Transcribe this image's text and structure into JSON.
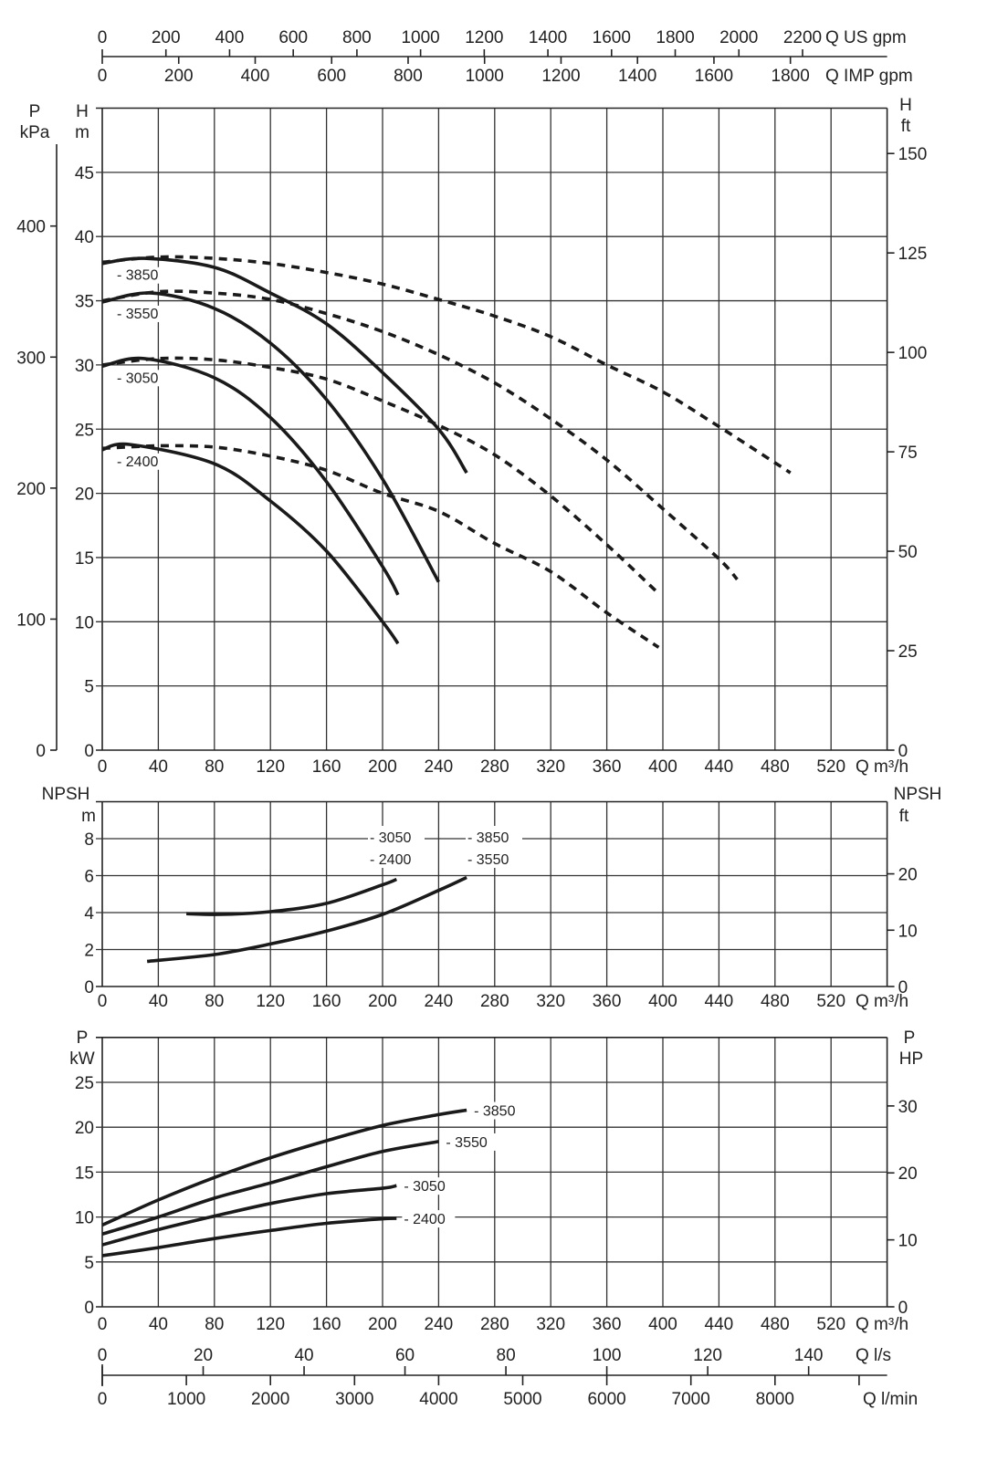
{
  "chart_data": {
    "type": "line",
    "top_axes": {
      "us_gpm": {
        "label": "Q US gpm",
        "ticks": [
          0,
          200,
          400,
          600,
          800,
          1000,
          1200,
          1400,
          1600,
          1800,
          2000,
          2200
        ]
      },
      "imp_gpm": {
        "label": "Q IMP gpm",
        "ticks": [
          0,
          200,
          400,
          600,
          800,
          1000,
          1200,
          1400,
          1600,
          1800
        ]
      }
    },
    "x_axis": {
      "label": "Q m³/h",
      "ticks": [
        0,
        40,
        80,
        120,
        160,
        200,
        240,
        280,
        320,
        360,
        400,
        440,
        480,
        520
      ],
      "range": [
        0,
        560
      ]
    },
    "head": {
      "ylabel": "H",
      "yunit": "m",
      "ylim": [
        0,
        50
      ],
      "yticks": [
        0,
        5,
        10,
        15,
        20,
        25,
        30,
        35,
        40,
        45
      ],
      "left2": {
        "label": "P",
        "unit": "kPa",
        "ticks": [
          0,
          100,
          200,
          300,
          400
        ]
      },
      "right": {
        "label": "H",
        "unit": "ft",
        "ticks": [
          0,
          25,
          50,
          75,
          100,
          125,
          150
        ]
      },
      "series": [
        {
          "name": "3850",
          "label": "- 3850",
          "style": "solid",
          "points": [
            [
              0,
              37.9
            ],
            [
              30,
              38.3
            ],
            [
              80,
              37.6
            ],
            [
              120,
              35.6
            ],
            [
              160,
              33.2
            ],
            [
              200,
              29.4
            ],
            [
              240,
              25.0
            ],
            [
              260,
              21.6
            ]
          ]
        },
        {
          "name": "3550",
          "label": "- 3550",
          "style": "solid",
          "points": [
            [
              0,
              34.9
            ],
            [
              35,
              35.6
            ],
            [
              80,
              34.4
            ],
            [
              120,
              31.7
            ],
            [
              160,
              27.3
            ],
            [
              200,
              21.1
            ],
            [
              240,
              13.1
            ]
          ]
        },
        {
          "name": "3050",
          "label": "- 3050",
          "style": "solid",
          "points": [
            [
              0,
              29.9
            ],
            [
              30,
              30.5
            ],
            [
              80,
              29.0
            ],
            [
              120,
              25.9
            ],
            [
              160,
              20.9
            ],
            [
              200,
              14.3
            ],
            [
              211,
              12.1
            ]
          ]
        },
        {
          "name": "2400",
          "label": "- 2400",
          "style": "solid",
          "points": [
            [
              0,
              23.4
            ],
            [
              20,
              23.8
            ],
            [
              80,
              22.3
            ],
            [
              120,
              19.4
            ],
            [
              160,
              15.5
            ],
            [
              200,
              10.0
            ],
            [
              211,
              8.3
            ]
          ]
        },
        {
          "name": "3850 dashed",
          "style": "dashed",
          "points": [
            [
              0,
              38.0
            ],
            [
              40,
              38.4
            ],
            [
              80,
              38.3
            ],
            [
              120,
              37.9
            ],
            [
              160,
              37.2
            ],
            [
              200,
              36.3
            ],
            [
              240,
              35.1
            ],
            [
              280,
              33.8
            ],
            [
              320,
              32.2
            ],
            [
              360,
              30.0
            ],
            [
              400,
              27.9
            ],
            [
              440,
              25.2
            ],
            [
              491,
              21.6
            ]
          ]
        },
        {
          "name": "3550 dashed",
          "style": "dashed",
          "points": [
            [
              0,
              35.0
            ],
            [
              40,
              35.7
            ],
            [
              80,
              35.6
            ],
            [
              120,
              35.1
            ],
            [
              160,
              34.0
            ],
            [
              200,
              32.6
            ],
            [
              240,
              30.8
            ],
            [
              280,
              28.6
            ],
            [
              320,
              25.8
            ],
            [
              360,
              22.6
            ],
            [
              400,
              18.8
            ],
            [
              440,
              14.9
            ],
            [
              453,
              13.3
            ]
          ]
        },
        {
          "name": "3050 dashed",
          "style": "dashed",
          "points": [
            [
              0,
              30.0
            ],
            [
              40,
              30.5
            ],
            [
              80,
              30.4
            ],
            [
              120,
              29.8
            ],
            [
              160,
              28.9
            ],
            [
              200,
              27.2
            ],
            [
              240,
              25.3
            ],
            [
              280,
              23.0
            ],
            [
              320,
              19.8
            ],
            [
              360,
              16.0
            ],
            [
              395,
              12.4
            ]
          ]
        },
        {
          "name": "2400 dashed",
          "style": "dashed",
          "points": [
            [
              0,
              23.5
            ],
            [
              40,
              23.7
            ],
            [
              80,
              23.6
            ],
            [
              120,
              22.9
            ],
            [
              160,
              21.8
            ],
            [
              200,
              20.0
            ],
            [
              240,
              18.6
            ],
            [
              280,
              16.1
            ],
            [
              320,
              13.9
            ],
            [
              360,
              10.7
            ],
            [
              397,
              8.0
            ]
          ]
        }
      ]
    },
    "npsh": {
      "ylabel": "NPSH",
      "yunit": "m",
      "ylim": [
        0,
        10
      ],
      "yticks": [
        0,
        2,
        4,
        6,
        8
      ],
      "right": {
        "label": "NPSH",
        "unit": "ft",
        "ticks": [
          0,
          10,
          20
        ]
      },
      "series": [
        {
          "name": "3050 / 2400",
          "labels": [
            "- 3050",
            "- 2400"
          ],
          "style": "solid",
          "points": [
            [
              60,
              3.94
            ],
            [
              85,
              3.9
            ],
            [
              120,
              4.05
            ],
            [
              160,
              4.5
            ],
            [
              200,
              5.5
            ],
            [
              210,
              5.8
            ]
          ]
        },
        {
          "name": "3850 / 3550",
          "labels": [
            "- 3850",
            "- 3550"
          ],
          "style": "solid",
          "points": [
            [
              32,
              1.36
            ],
            [
              80,
              1.73
            ],
            [
              120,
              2.3
            ],
            [
              160,
              3.0
            ],
            [
              200,
              3.9
            ],
            [
              240,
              5.2
            ],
            [
              260,
              5.9
            ]
          ]
        }
      ]
    },
    "power": {
      "ylabel": "P",
      "yunit": "kW",
      "ylim": [
        0,
        30
      ],
      "yticks": [
        0,
        5,
        10,
        15,
        20,
        25
      ],
      "right": {
        "label": "P",
        "unit": "HP",
        "ticks": [
          0,
          10,
          20,
          30
        ]
      },
      "series": [
        {
          "name": "3850",
          "label": "- 3850",
          "style": "solid",
          "points": [
            [
              0,
              9.1
            ],
            [
              40,
              11.9
            ],
            [
              80,
              14.4
            ],
            [
              120,
              16.6
            ],
            [
              160,
              18.5
            ],
            [
              200,
              20.2
            ],
            [
              240,
              21.4
            ],
            [
              260,
              21.9
            ]
          ]
        },
        {
          "name": "3550",
          "label": "- 3550",
          "style": "solid",
          "points": [
            [
              0,
              8.1
            ],
            [
              40,
              10.0
            ],
            [
              80,
              12.1
            ],
            [
              120,
              13.8
            ],
            [
              160,
              15.6
            ],
            [
              200,
              17.3
            ],
            [
              240,
              18.4
            ]
          ]
        },
        {
          "name": "3050",
          "label": "- 3050",
          "style": "solid",
          "points": [
            [
              0,
              6.9
            ],
            [
              40,
              8.6
            ],
            [
              80,
              10.1
            ],
            [
              120,
              11.5
            ],
            [
              160,
              12.6
            ],
            [
              200,
              13.2
            ],
            [
              210,
              13.5
            ]
          ]
        },
        {
          "name": "2400",
          "label": "- 2400",
          "style": "solid",
          "points": [
            [
              0,
              5.7
            ],
            [
              40,
              6.6
            ],
            [
              80,
              7.6
            ],
            [
              120,
              8.5
            ],
            [
              160,
              9.3
            ],
            [
              200,
              9.8
            ],
            [
              210,
              9.85
            ]
          ]
        }
      ]
    },
    "bottom_axes": {
      "ls": {
        "label": "Q l/s",
        "ticks": [
          0,
          20,
          40,
          60,
          80,
          100,
          120,
          140
        ]
      },
      "lmin": {
        "label": "Q l/min",
        "ticks": [
          0,
          1000,
          2000,
          3000,
          4000,
          5000,
          6000,
          7000,
          8000
        ],
        "unlabeled_ticks": [
          9000
        ]
      }
    }
  }
}
